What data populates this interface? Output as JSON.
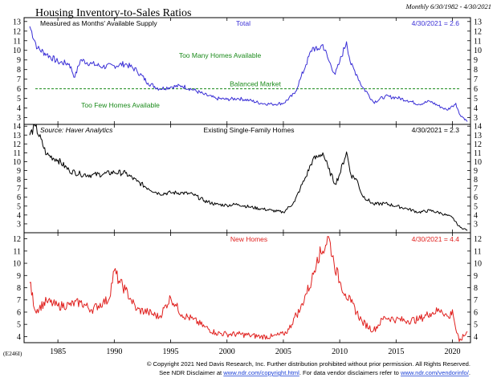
{
  "header": {
    "title": "Housing Inventory-to-Sales Ratios",
    "date_range": "Monthly 6/30/1982 - 4/30/2021"
  },
  "footer": {
    "copyright": "© Copyright 2021 Ned Davis Research, Inc.  Further distribution prohibited without prior permission.  All Rights Reserved.",
    "disclaimer_prefix": "See NDR Disclaimer at ",
    "disclaimer_link1": "www.ndr.com/copyright.html",
    "disclaimer_mid": ".  For data vendor disclaimers refer to ",
    "disclaimer_link2": "www.ndr.com/vendorinfo/",
    "disclaimer_end": ".",
    "code": "(E246I)"
  },
  "colors": {
    "total": "#3a2fd6",
    "existing": "#000000",
    "new": "#e0201e",
    "balanced": "#1a8a1a",
    "link": "#1a3fd6"
  },
  "chart_data": [
    {
      "type": "line",
      "name": "Total",
      "title": "Total",
      "subtitle": "Measured as Months' Available Supply",
      "value_label": "4/30/2021 = 2.6",
      "ylim": [
        2.3,
        13.4
      ],
      "yticks": [
        3,
        4,
        5,
        6,
        7,
        8,
        9,
        10,
        11,
        12,
        13
      ],
      "reference_line": {
        "y": 6,
        "label": "Balanced Market"
      },
      "annotations": [
        "Too Many Homes Available",
        "Too Few Homes Available"
      ],
      "series": [
        {
          "name": "Total",
          "x": [
            1982.5,
            1983.2,
            1984,
            1985,
            1986,
            1986.5,
            1987,
            1988,
            1989,
            1990,
            1991,
            1992,
            1993,
            1994,
            1995,
            1996,
            1997,
            1998,
            1999,
            2000,
            2001,
            2002,
            2003,
            2004,
            2005,
            2006,
            2006.5,
            2007,
            2007.6,
            2008,
            2008.5,
            2009,
            2009.6,
            2010,
            2010.6,
            2011,
            2011.5,
            2012,
            2012.5,
            2013,
            2014,
            2015,
            2016,
            2017,
            2018,
            2019,
            2019.5,
            2020,
            2020.3,
            2020.6,
            2021.33
          ],
          "y": [
            12.5,
            10.2,
            9.6,
            8.8,
            8.6,
            7.2,
            9.0,
            8.6,
            8.3,
            8.4,
            8.6,
            7.9,
            6.6,
            6.0,
            6.2,
            6.3,
            5.9,
            5.4,
            5.0,
            4.9,
            5.0,
            4.8,
            4.5,
            4.4,
            4.5,
            5.5,
            7.0,
            8.5,
            10.3,
            10.0,
            10.6,
            9.0,
            7.5,
            8.8,
            10.9,
            8.5,
            7.5,
            6.2,
            5.5,
            4.6,
            5.2,
            5.1,
            4.8,
            4.4,
            4.7,
            4.1,
            3.8,
            4.2,
            4.5,
            3.4,
            2.6
          ]
        }
      ]
    },
    {
      "type": "line",
      "name": "Existing Single-Family Homes",
      "title": "Existing Single-Family Homes",
      "source": "Source: Haver Analytics",
      "value_label": "4/30/2021 = 2.3",
      "ylim": [
        2.0,
        14.2
      ],
      "yticks": [
        3,
        4,
        5,
        6,
        7,
        8,
        9,
        10,
        11,
        12,
        13,
        14
      ],
      "series": [
        {
          "name": "Existing Single-Family Homes",
          "x": [
            1982.5,
            1983,
            1984,
            1985,
            1986,
            1987,
            1988,
            1989,
            1990,
            1991,
            1992,
            1993,
            1994,
            1995,
            1996,
            1997,
            1998,
            1999,
            2000,
            2001,
            2002,
            2003,
            2004,
            2005,
            2006,
            2006.5,
            2007,
            2007.6,
            2008,
            2008.5,
            2009,
            2009.6,
            2010,
            2010.6,
            2011,
            2011.5,
            2012,
            2013,
            2014,
            2015,
            2016,
            2017,
            2018,
            2019,
            2020,
            2020.4,
            2020.7,
            2021.33
          ],
          "y": [
            13.0,
            14.0,
            10.8,
            10.2,
            9.0,
            8.6,
            8.5,
            8.6,
            8.8,
            8.7,
            7.8,
            7.0,
            6.4,
            6.5,
            6.5,
            6.3,
            5.6,
            5.2,
            5.1,
            5.2,
            4.9,
            4.7,
            4.5,
            4.3,
            5.5,
            7.0,
            8.3,
            10.2,
            10.5,
            11.0,
            9.2,
            7.5,
            8.6,
            11.1,
            8.5,
            8.0,
            6.2,
            5.2,
            5.3,
            5.0,
            4.7,
            4.3,
            4.5,
            4.2,
            3.7,
            3.0,
            2.6,
            2.3
          ]
        }
      ]
    },
    {
      "type": "line",
      "name": "New Homes",
      "title": "New Homes",
      "value_label": "4/30/2021 = 4.4",
      "ylim": [
        3.5,
        12.5
      ],
      "yticks": [
        4,
        5,
        6,
        7,
        8,
        9,
        10,
        11,
        12
      ],
      "xlim": [
        1982,
        2021.6
      ],
      "xticks": [
        1985,
        1990,
        1995,
        2000,
        2005,
        2010,
        2015,
        2020
      ],
      "series": [
        {
          "name": "New Homes",
          "x": [
            1982.5,
            1983,
            1984,
            1985,
            1986,
            1987,
            1988,
            1989,
            1989.5,
            1990,
            1990.5,
            1991,
            1991.5,
            1992,
            1993,
            1994,
            1995,
            1995.5,
            1996,
            1997,
            1998,
            1999,
            2000,
            2001,
            2002,
            2003,
            2004,
            2005,
            2005.5,
            2006,
            2006.5,
            2007,
            2007.5,
            2008,
            2008.5,
            2009,
            2009.5,
            2010,
            2010.5,
            2011,
            2012,
            2013,
            2014,
            2015,
            2016,
            2017,
            2018,
            2019,
            2019.7,
            2020,
            2020.3,
            2020.6,
            2021.33
          ],
          "y": [
            8.4,
            6.1,
            6.9,
            6.5,
            6.6,
            6.8,
            6.2,
            6.8,
            7.0,
            9.4,
            8.4,
            7.8,
            7.0,
            6.2,
            6.0,
            5.6,
            7.2,
            6.5,
            5.8,
            5.4,
            4.8,
            4.3,
            4.2,
            4.2,
            4.1,
            4.0,
            4.0,
            4.2,
            4.6,
            5.6,
            6.2,
            7.5,
            8.5,
            10.5,
            11.0,
            12.2,
            10.0,
            8.5,
            7.5,
            6.8,
            5.2,
            4.5,
            5.6,
            5.4,
            5.3,
            5.4,
            5.9,
            6.2,
            5.5,
            6.2,
            4.6,
            3.6,
            4.4
          ]
        }
      ]
    }
  ]
}
